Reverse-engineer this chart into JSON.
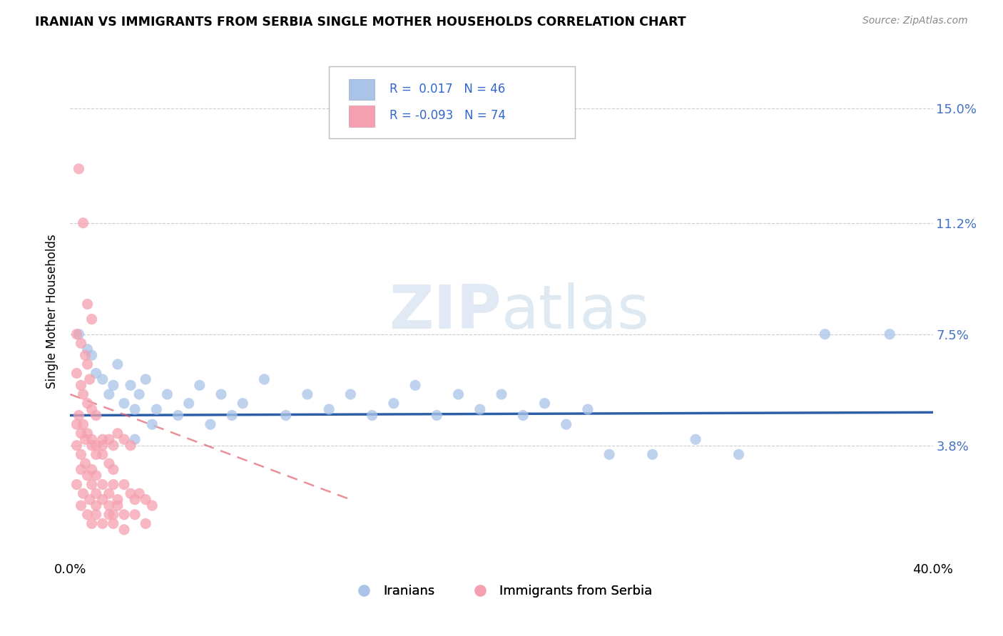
{
  "title": "IRANIAN VS IMMIGRANTS FROM SERBIA SINGLE MOTHER HOUSEHOLDS CORRELATION CHART",
  "source": "Source: ZipAtlas.com",
  "ylabel": "Single Mother Households",
  "xlim": [
    0.0,
    0.4
  ],
  "ylim": [
    0.0,
    0.165
  ],
  "ytick_vals": [
    0.038,
    0.075,
    0.112,
    0.15
  ],
  "ytick_labels": [
    "3.8%",
    "7.5%",
    "11.2%",
    "15.0%"
  ],
  "xtick_vals": [
    0.0,
    0.4
  ],
  "xtick_labels": [
    "0.0%",
    "40.0%"
  ],
  "color_iranian": "#aac4e8",
  "color_serbia": "#f5a0b0",
  "line_color_iranian": "#2c5fa8",
  "line_color_serbia": "#e06070",
  "watermark_zip": "ZIP",
  "watermark_atlas": "atlas",
  "scatter_iranian": [
    [
      0.004,
      0.075
    ],
    [
      0.008,
      0.07
    ],
    [
      0.01,
      0.068
    ],
    [
      0.012,
      0.062
    ],
    [
      0.015,
      0.06
    ],
    [
      0.018,
      0.055
    ],
    [
      0.02,
      0.058
    ],
    [
      0.022,
      0.065
    ],
    [
      0.025,
      0.052
    ],
    [
      0.028,
      0.058
    ],
    [
      0.03,
      0.05
    ],
    [
      0.032,
      0.055
    ],
    [
      0.035,
      0.06
    ],
    [
      0.038,
      0.045
    ],
    [
      0.04,
      0.05
    ],
    [
      0.045,
      0.055
    ],
    [
      0.05,
      0.048
    ],
    [
      0.055,
      0.052
    ],
    [
      0.06,
      0.058
    ],
    [
      0.065,
      0.045
    ],
    [
      0.07,
      0.055
    ],
    [
      0.075,
      0.048
    ],
    [
      0.08,
      0.052
    ],
    [
      0.09,
      0.06
    ],
    [
      0.1,
      0.048
    ],
    [
      0.11,
      0.055
    ],
    [
      0.12,
      0.05
    ],
    [
      0.13,
      0.055
    ],
    [
      0.14,
      0.048
    ],
    [
      0.15,
      0.052
    ],
    [
      0.16,
      0.058
    ],
    [
      0.17,
      0.048
    ],
    [
      0.18,
      0.055
    ],
    [
      0.19,
      0.05
    ],
    [
      0.2,
      0.055
    ],
    [
      0.21,
      0.048
    ],
    [
      0.22,
      0.052
    ],
    [
      0.23,
      0.045
    ],
    [
      0.24,
      0.05
    ],
    [
      0.25,
      0.035
    ],
    [
      0.27,
      0.035
    ],
    [
      0.29,
      0.04
    ],
    [
      0.31,
      0.035
    ],
    [
      0.35,
      0.075
    ],
    [
      0.38,
      0.075
    ],
    [
      0.03,
      0.04
    ]
  ],
  "scatter_serbia": [
    [
      0.004,
      0.13
    ],
    [
      0.006,
      0.112
    ],
    [
      0.008,
      0.085
    ],
    [
      0.01,
      0.08
    ],
    [
      0.003,
      0.075
    ],
    [
      0.005,
      0.072
    ],
    [
      0.007,
      0.068
    ],
    [
      0.008,
      0.065
    ],
    [
      0.009,
      0.06
    ],
    [
      0.003,
      0.062
    ],
    [
      0.005,
      0.058
    ],
    [
      0.006,
      0.055
    ],
    [
      0.008,
      0.052
    ],
    [
      0.01,
      0.05
    ],
    [
      0.012,
      0.048
    ],
    [
      0.004,
      0.048
    ],
    [
      0.006,
      0.045
    ],
    [
      0.008,
      0.042
    ],
    [
      0.01,
      0.04
    ],
    [
      0.012,
      0.038
    ],
    [
      0.015,
      0.04
    ],
    [
      0.003,
      0.045
    ],
    [
      0.005,
      0.042
    ],
    [
      0.007,
      0.04
    ],
    [
      0.01,
      0.038
    ],
    [
      0.012,
      0.035
    ],
    [
      0.015,
      0.038
    ],
    [
      0.018,
      0.04
    ],
    [
      0.02,
      0.038
    ],
    [
      0.022,
      0.042
    ],
    [
      0.025,
      0.04
    ],
    [
      0.028,
      0.038
    ],
    [
      0.003,
      0.038
    ],
    [
      0.005,
      0.035
    ],
    [
      0.007,
      0.032
    ],
    [
      0.01,
      0.03
    ],
    [
      0.012,
      0.028
    ],
    [
      0.015,
      0.035
    ],
    [
      0.018,
      0.032
    ],
    [
      0.02,
      0.03
    ],
    [
      0.005,
      0.03
    ],
    [
      0.008,
      0.028
    ],
    [
      0.01,
      0.025
    ],
    [
      0.012,
      0.022
    ],
    [
      0.015,
      0.025
    ],
    [
      0.018,
      0.022
    ],
    [
      0.02,
      0.025
    ],
    [
      0.022,
      0.02
    ],
    [
      0.025,
      0.025
    ],
    [
      0.028,
      0.022
    ],
    [
      0.03,
      0.02
    ],
    [
      0.032,
      0.022
    ],
    [
      0.035,
      0.02
    ],
    [
      0.038,
      0.018
    ],
    [
      0.003,
      0.025
    ],
    [
      0.006,
      0.022
    ],
    [
      0.009,
      0.02
    ],
    [
      0.012,
      0.018
    ],
    [
      0.015,
      0.02
    ],
    [
      0.018,
      0.018
    ],
    [
      0.02,
      0.015
    ],
    [
      0.022,
      0.018
    ],
    [
      0.025,
      0.015
    ],
    [
      0.005,
      0.018
    ],
    [
      0.008,
      0.015
    ],
    [
      0.01,
      0.012
    ],
    [
      0.012,
      0.015
    ],
    [
      0.015,
      0.012
    ],
    [
      0.018,
      0.015
    ],
    [
      0.02,
      0.012
    ],
    [
      0.025,
      0.01
    ],
    [
      0.03,
      0.015
    ],
    [
      0.035,
      0.012
    ]
  ],
  "serbia_line_x": [
    0.0,
    0.13
  ],
  "serbia_line_y": [
    0.055,
    0.02
  ],
  "iranian_line_x": [
    0.0,
    0.4
  ],
  "iranian_line_y": [
    0.048,
    0.049
  ]
}
